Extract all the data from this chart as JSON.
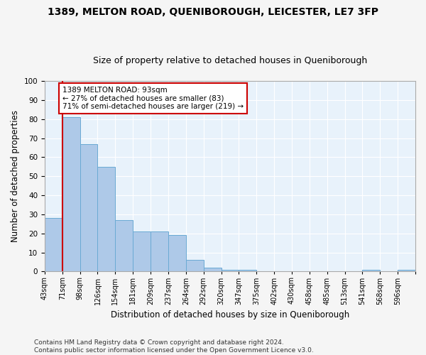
{
  "title": "1389, MELTON ROAD, QUENIBOROUGH, LEICESTER, LE7 3FP",
  "subtitle": "Size of property relative to detached houses in Queniborough",
  "xlabel": "Distribution of detached houses by size in Queniborough",
  "ylabel": "Number of detached properties",
  "bar_color": "#aec9e8",
  "bar_edge_color": "#6aaad4",
  "background_color": "#ddeeff",
  "plot_bg_color": "#e8f2fb",
  "grid_color": "#ffffff",
  "annotation_text": "1389 MELTON ROAD: 93sqm\n← 27% of detached houses are smaller (83)\n71% of semi-detached houses are larger (219) →",
  "vline_x": 1,
  "bin_counts": [
    28,
    81,
    67,
    55,
    27,
    21,
    21,
    19,
    6,
    2,
    1,
    1,
    0,
    0,
    0,
    0,
    0,
    0,
    1,
    0,
    1
  ],
  "tick_labels": [
    "43sqm",
    "71sqm",
    "98sqm",
    "126sqm",
    "154sqm",
    "181sqm",
    "209sqm",
    "237sqm",
    "264sqm",
    "292sqm",
    "320sqm",
    "347sqm",
    "375sqm",
    "402sqm",
    "430sqm",
    "458sqm",
    "485sqm",
    "513sqm",
    "541sqm",
    "568sqm",
    "596sqm"
  ],
  "ylim": [
    0,
    100
  ],
  "yticks": [
    0,
    10,
    20,
    30,
    40,
    50,
    60,
    70,
    80,
    90,
    100
  ],
  "footer": "Contains HM Land Registry data © Crown copyright and database right 2024.\nContains public sector information licensed under the Open Government Licence v3.0.",
  "annotation_box_color": "#ffffff",
  "annotation_box_edge": "#cc0000",
  "vline_color": "#cc0000",
  "title_fontsize": 10,
  "subtitle_fontsize": 9,
  "axis_label_fontsize": 8.5,
  "tick_fontsize": 7,
  "footer_fontsize": 6.5,
  "annotation_fontsize": 7.5,
  "fig_bg_color": "#f5f5f5"
}
